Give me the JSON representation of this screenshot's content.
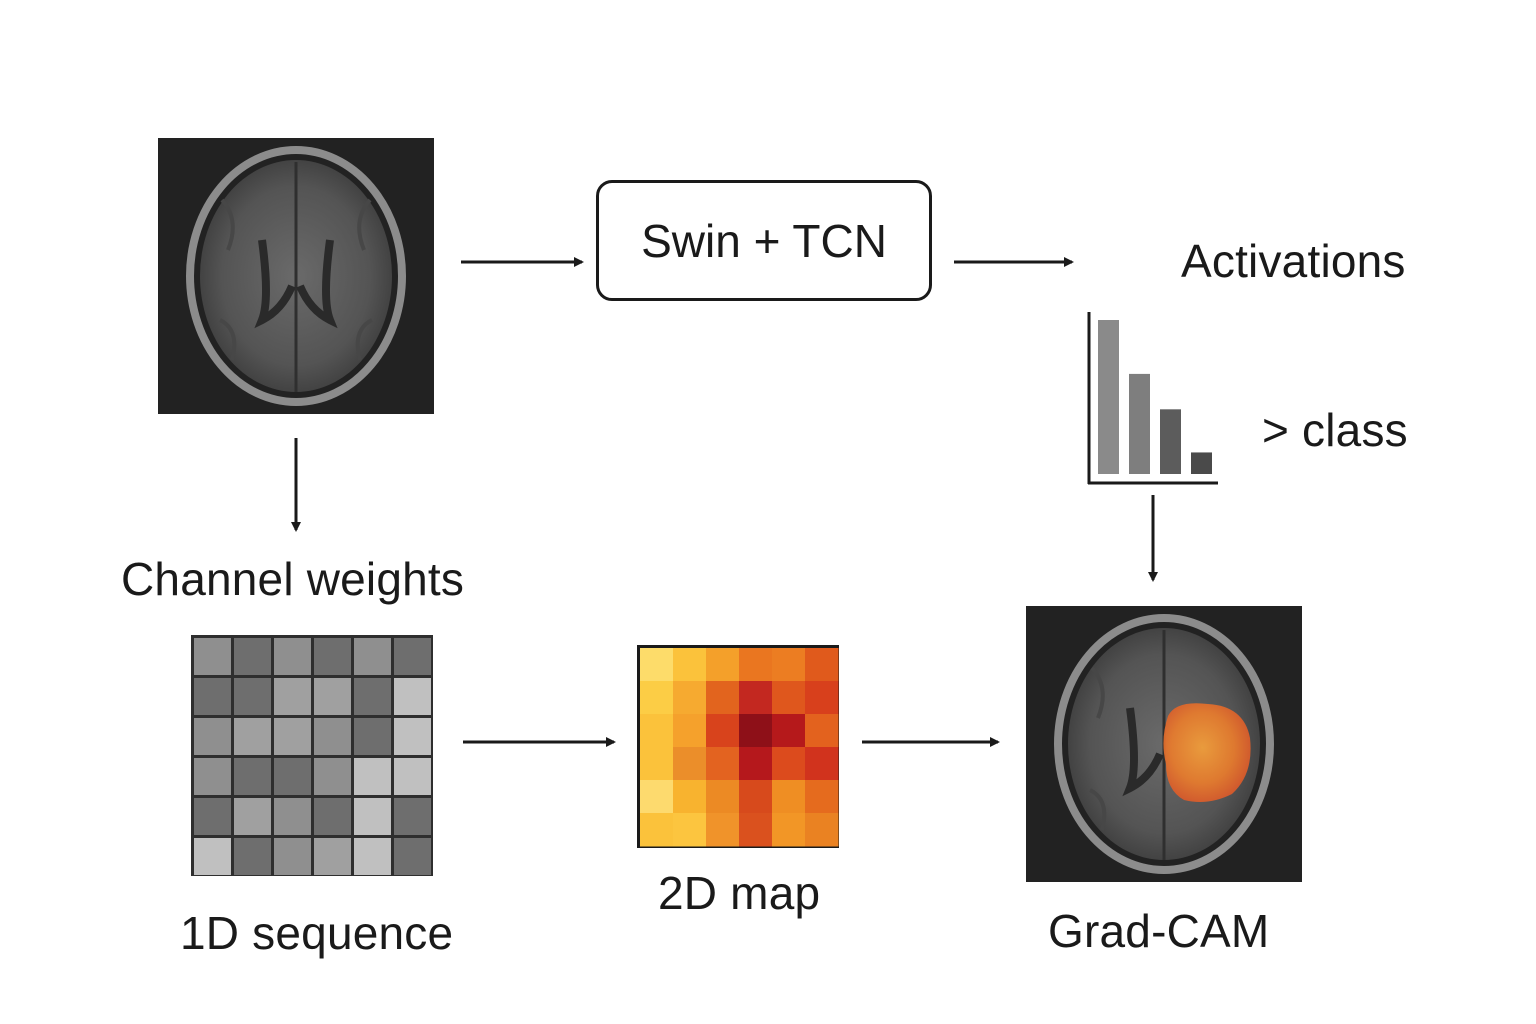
{
  "nodes": {
    "model_box": "Swin + TCN",
    "activations": "Activations",
    "class_label": "> class",
    "channel_weights": "Channel weights",
    "sequence": "1D sequence",
    "map_2d": "2D map",
    "gradcam": "Grad-CAM"
  },
  "bar_chart": {
    "values": [
      1.0,
      0.65,
      0.42,
      0.14
    ],
    "colors": [
      "#8a8a8a",
      "#7e7e7e",
      "#5c5c5c",
      "#4a4a4a"
    ]
  },
  "sequence_grid": {
    "rows": 6,
    "cols": 6,
    "shades": [
      [
        "#8f8f8f",
        "#6e6e6e",
        "#8f8f8f",
        "#6e6e6e",
        "#8f8f8f",
        "#6e6e6e"
      ],
      [
        "#6e6e6e",
        "#6e6e6e",
        "#a0a0a0",
        "#a0a0a0",
        "#6e6e6e",
        "#c0c0c0"
      ],
      [
        "#8f8f8f",
        "#a0a0a0",
        "#a0a0a0",
        "#8f8f8f",
        "#6e6e6e",
        "#c0c0c0"
      ],
      [
        "#8f8f8f",
        "#6e6e6e",
        "#6e6e6e",
        "#8f8f8f",
        "#c0c0c0",
        "#c0c0c0"
      ],
      [
        "#6e6e6e",
        "#a0a0a0",
        "#8f8f8f",
        "#6e6e6e",
        "#c0c0c0",
        "#6e6e6e"
      ],
      [
        "#c0c0c0",
        "#6e6e6e",
        "#8f8f8f",
        "#a0a0a0",
        "#c0c0c0",
        "#6e6e6e"
      ]
    ]
  },
  "heatmap_grid": {
    "rows": 6,
    "cols": 6,
    "colors": [
      [
        "#fddc6a",
        "#fbc23b",
        "#f4a02a",
        "#ea7620",
        "#ec7d22",
        "#e05a1c"
      ],
      [
        "#fccd45",
        "#f6aa30",
        "#e2641e",
        "#c32820",
        "#df571d",
        "#d8401c"
      ],
      [
        "#fbc23b",
        "#f5a12c",
        "#d8431c",
        "#8e1018",
        "#b5191b",
        "#e3621e"
      ],
      [
        "#fbc23b",
        "#eb8e2a",
        "#e36320",
        "#b5181c",
        "#dc4b1d",
        "#d1331d"
      ],
      [
        "#fdda6e",
        "#f8b32f",
        "#ec8a24",
        "#d74a1c",
        "#ef8e23",
        "#e56b1e"
      ],
      [
        "#fbc23b",
        "#fcc53f",
        "#f0932a",
        "#da511e",
        "#f29626",
        "#ea8222"
      ]
    ]
  },
  "icons": {
    "mri_input": "brain-mri-image",
    "mri_output": "brain-mri-gradcam-overlay"
  }
}
